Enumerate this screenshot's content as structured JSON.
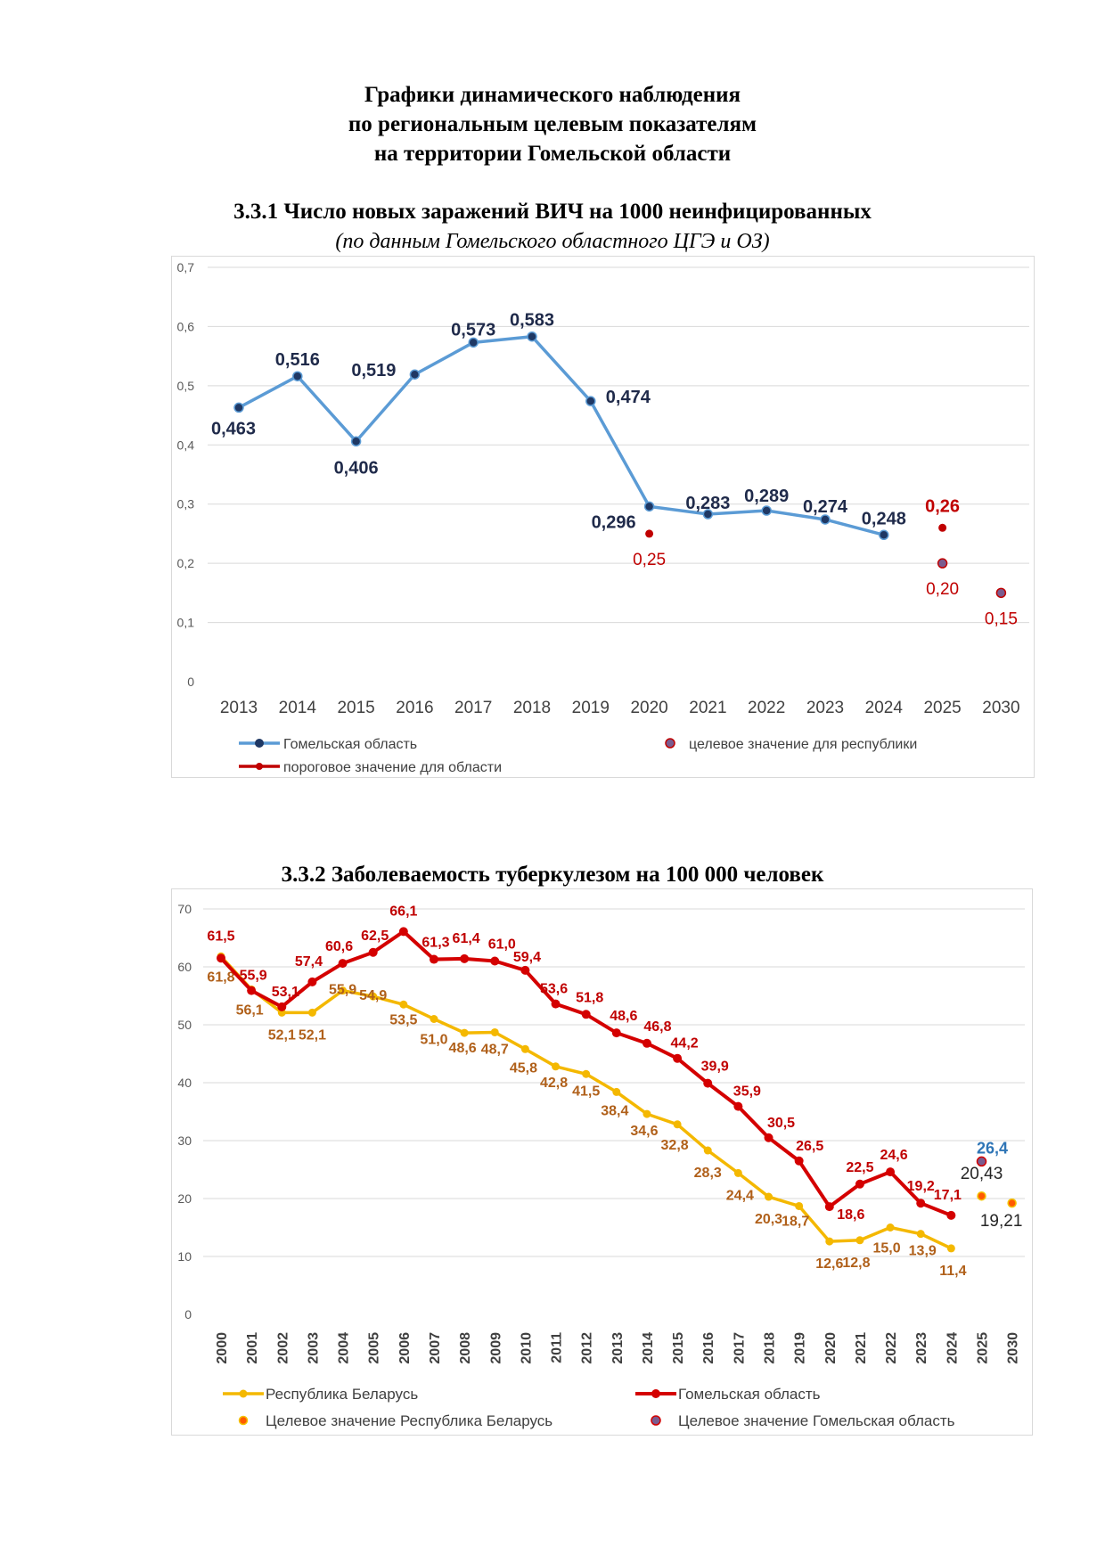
{
  "document": {
    "title_lines": [
      "Графики динамического наблюдения",
      "по региональным целевым показателям",
      "на территории Гомельской области"
    ]
  },
  "sections": [
    {
      "title": "3.3.1 Число новых заражений ВИЧ на 1000 неинфицированных",
      "subtitle": "(по данным Гомельского областного ЦГЭ и ОЗ)"
    },
    {
      "title": "3.3.2 Заболеваемость туберкулезом на 100 000 человек"
    }
  ],
  "colors": {
    "hiv_line": "#5b9bd5",
    "hiv_marker": "#1f3864",
    "hiv_label": "#1f2a4a",
    "threshold": "#c00000",
    "target_marker": "#7a5c8f",
    "tb_rb": "#f4b800",
    "tb_rb_label": "#b0601a",
    "tb_gomel": "#d40000",
    "tb_gomel_label": "#c00000",
    "tb_target_rb": "#ff5a00",
    "tb_target_rb_ring": "#f4c400",
    "tb_target_gomel": "#7a5c8f",
    "tb_target_gomel_label": "#2e75b6",
    "grid": "#d9d9d9",
    "axis_text": "#595959"
  },
  "chart_data": [
    {
      "type": "line",
      "categories": [
        "2013",
        "2014",
        "2015",
        "2016",
        "2017",
        "2018",
        "2019",
        "2020",
        "2021",
        "2022",
        "2023",
        "2024",
        "2025",
        "2030"
      ],
      "ylim": [
        0,
        0.7
      ],
      "yticks": [
        "0",
        "0,1",
        "0,2",
        "0,3",
        "0,4",
        "0,5",
        "0,6",
        "0,7"
      ],
      "grid": true,
      "legend_position": "bottom",
      "series": [
        {
          "name": "Гомельская область",
          "kind": "line",
          "x": [
            "2013",
            "2014",
            "2015",
            "2016",
            "2017",
            "2018",
            "2019",
            "2020",
            "2021",
            "2022",
            "2023",
            "2024"
          ],
          "values": [
            0.463,
            0.516,
            0.406,
            0.519,
            0.573,
            0.583,
            0.474,
            0.296,
            0.283,
            0.289,
            0.274,
            0.248
          ],
          "labels": [
            "0,463",
            "0,516",
            "0,406",
            "0,519",
            "0,573",
            "0,583",
            "0,474",
            "0,296",
            "0,283",
            "0,289",
            "0,274",
            "0,248"
          ]
        },
        {
          "name": "пороговое значение для области",
          "kind": "points",
          "x": [
            "2020",
            "2025"
          ],
          "values": [
            0.25,
            0.26
          ],
          "labels": [
            "0,25",
            "0,26"
          ]
        },
        {
          "name": "целевое значение для республики",
          "kind": "points",
          "x": [
            "2025",
            "2030"
          ],
          "values": [
            0.2,
            0.15
          ],
          "labels": [
            "0,20",
            "0,15"
          ]
        }
      ]
    },
    {
      "type": "line",
      "categories": [
        "2000",
        "2001",
        "2002",
        "2003",
        "2004",
        "2005",
        "2006",
        "2007",
        "2008",
        "2009",
        "2010",
        "2011",
        "2012",
        "2013",
        "2014",
        "2015",
        "2016",
        "2017",
        "2018",
        "2019",
        "2020",
        "2021",
        "2022",
        "2023",
        "2024",
        "2025",
        "2030"
      ],
      "ylim": [
        0,
        70
      ],
      "yticks": [
        "0",
        "10",
        "20",
        "30",
        "40",
        "50",
        "60",
        "70"
      ],
      "grid": true,
      "legend_position": "bottom",
      "series": [
        {
          "name": "Республика Беларусь",
          "kind": "line",
          "x": [
            "2000",
            "2001",
            "2002",
            "2003",
            "2004",
            "2005",
            "2006",
            "2007",
            "2008",
            "2009",
            "2010",
            "2011",
            "2012",
            "2013",
            "2014",
            "2015",
            "2016",
            "2017",
            "2018",
            "2019",
            "2020",
            "2021",
            "2022",
            "2023",
            "2024"
          ],
          "values": [
            61.8,
            56.1,
            52.1,
            52.1,
            55.9,
            54.9,
            53.5,
            51.0,
            48.6,
            48.7,
            45.8,
            42.8,
            41.5,
            38.4,
            34.6,
            32.8,
            28.3,
            24.4,
            20.3,
            18.7,
            12.6,
            12.8,
            15.0,
            13.9,
            11.4
          ],
          "labels": [
            "61,8",
            "56,1",
            "52,1",
            "52,1",
            "55,9",
            "54,9",
            "53,5",
            "51,0",
            "48,6",
            "48,7",
            "45,8",
            "42,8",
            "41,5",
            "38,4",
            "34,6",
            "32,8",
            "28,3",
            "24,4",
            "20,3",
            "18,7",
            "12,6",
            "12,8",
            "15,0",
            "13,9",
            "11,4"
          ]
        },
        {
          "name": "Гомельская область",
          "kind": "line",
          "x": [
            "2000",
            "2001",
            "2002",
            "2003",
            "2004",
            "2005",
            "2006",
            "2007",
            "2008",
            "2009",
            "2010",
            "2011",
            "2012",
            "2013",
            "2014",
            "2015",
            "2016",
            "2017",
            "2018",
            "2019",
            "2020",
            "2021",
            "2022",
            "2023",
            "2024"
          ],
          "values": [
            61.5,
            55.9,
            53.1,
            57.4,
            60.6,
            62.5,
            66.1,
            61.3,
            61.4,
            61.0,
            59.4,
            53.6,
            51.8,
            48.6,
            46.8,
            44.2,
            39.9,
            35.9,
            30.5,
            26.5,
            18.6,
            22.5,
            24.6,
            19.2,
            17.1
          ],
          "labels": [
            "61,5",
            "55,9",
            "53,1",
            "57,4",
            "60,6",
            "62,5",
            "66,1",
            "61,3",
            "61,4",
            "61,0",
            "59,4",
            "53,6",
            "51,8",
            "48,6",
            "46,8",
            "44,2",
            "39,9",
            "35,9",
            "30,5",
            "26,5",
            "18,6",
            "22,5",
            "24,6",
            "19,2",
            "17,1"
          ]
        },
        {
          "name": "Целевое значение Республика Беларусь",
          "kind": "points",
          "x": [
            "2025",
            "2030"
          ],
          "values": [
            20.43,
            19.21
          ],
          "labels": [
            "20,43",
            "19,21"
          ]
        },
        {
          "name": "Целевое значение Гомельская область",
          "kind": "points",
          "x": [
            "2025"
          ],
          "values": [
            26.4
          ],
          "labels": [
            "26,4"
          ]
        }
      ]
    }
  ]
}
